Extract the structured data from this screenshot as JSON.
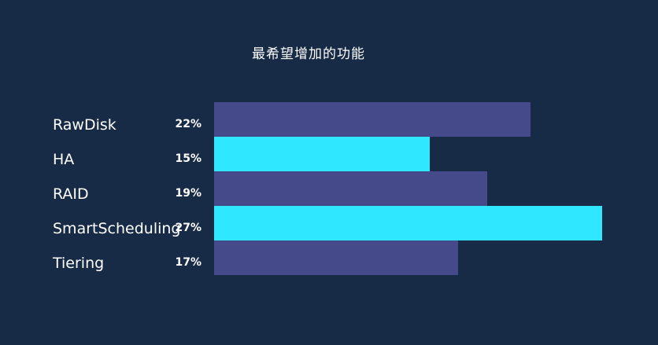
{
  "chart_data": {
    "type": "bar",
    "orientation": "horizontal",
    "title": "最希望增加的功能",
    "categories": [
      "RawDisk",
      "HA",
      "RAID",
      "SmartScheduling",
      "Tiering"
    ],
    "values": [
      22,
      15,
      19,
      27,
      17
    ],
    "value_labels": [
      "22%",
      "15%",
      "19%",
      "27%",
      "17%"
    ],
    "unit": "%",
    "xlim": [
      0,
      27
    ],
    "grid": false,
    "legend": "none",
    "colors": {
      "background": "#172b46",
      "bar_primary": "#454b8a",
      "bar_highlight": "#2fe8ff",
      "text": "#ffffff"
    },
    "bar_colors": [
      "#454b8a",
      "#2fe8ff",
      "#454b8a",
      "#2fe8ff",
      "#454b8a"
    ]
  }
}
